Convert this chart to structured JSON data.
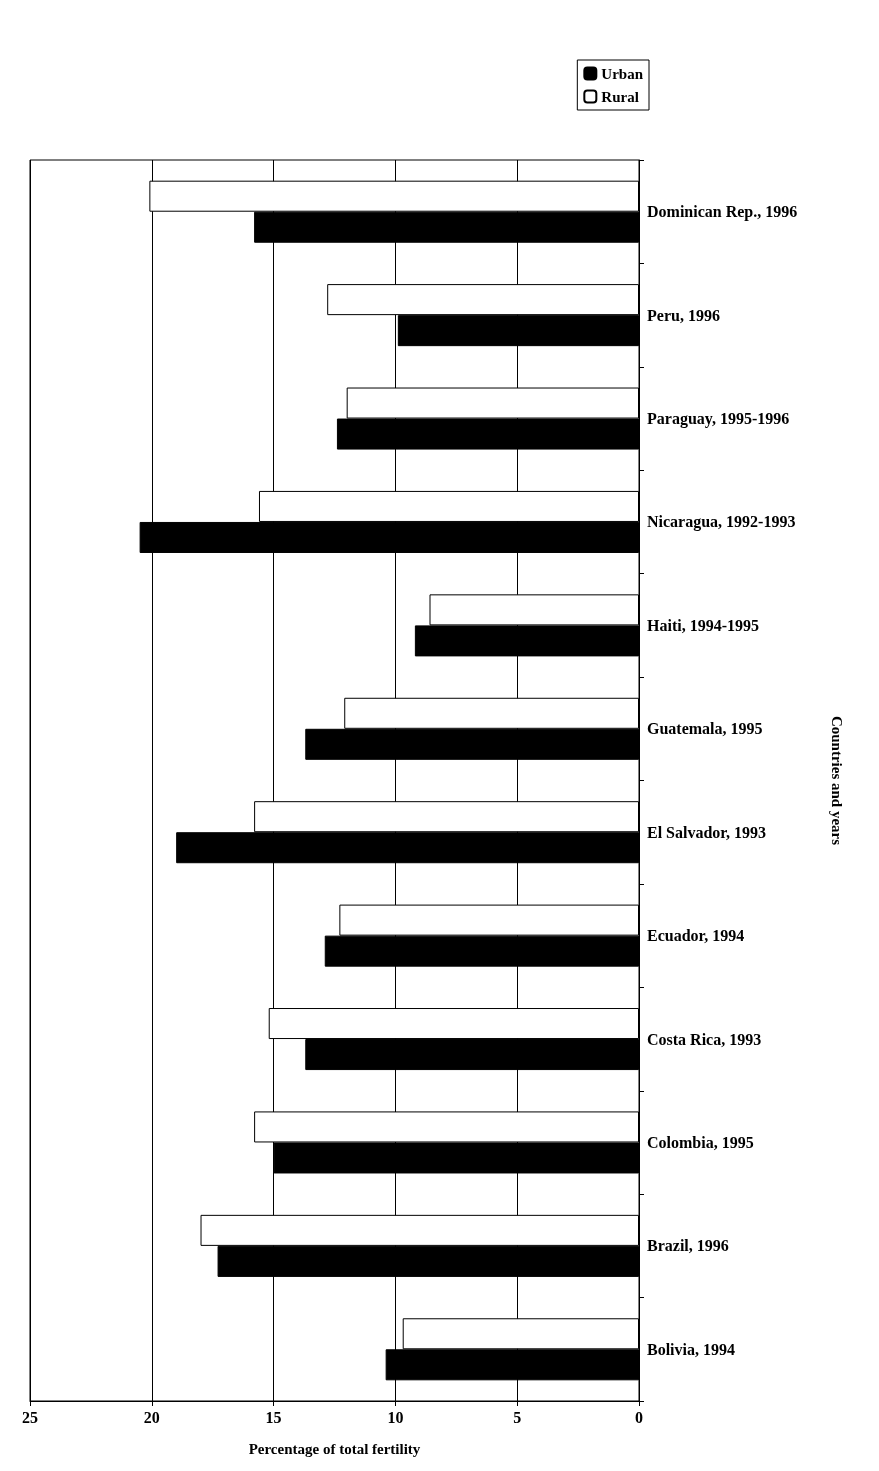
{
  "chart_data": {
    "type": "bar",
    "orientation": "horizontal",
    "xlabel": "Percentage of total fertility",
    "ylabel": "Countries and years",
    "categories": [
      "Dominican Rep., 1996",
      "Peru, 1996",
      "Paraguay, 1995-1996",
      "Nicaragua, 1992-1993",
      "Haiti, 1994-1995",
      "Guatemala, 1995",
      "El Salvador, 1993",
      "Ecuador, 1994",
      "Costa Rica, 1993",
      "Colombia, 1995",
      "Brazil, 1996",
      "Bolivia, 1994"
    ],
    "series": [
      {
        "name": "Urban",
        "color": "#000000",
        "values": [
          15.8,
          9.9,
          12.4,
          20.5,
          9.2,
          13.7,
          19.0,
          12.9,
          13.7,
          15.0,
          17.3,
          10.4
        ]
      },
      {
        "name": "Rural",
        "color": "#ffffff",
        "values": [
          20.1,
          12.8,
          12.0,
          15.6,
          8.6,
          12.1,
          15.8,
          12.3,
          15.2,
          15.8,
          18.0,
          9.7
        ]
      }
    ],
    "xlim": [
      25,
      0
    ],
    "xticks": [
      25,
      20,
      15,
      10,
      5,
      0
    ],
    "grid": "x",
    "legend": "top right"
  }
}
